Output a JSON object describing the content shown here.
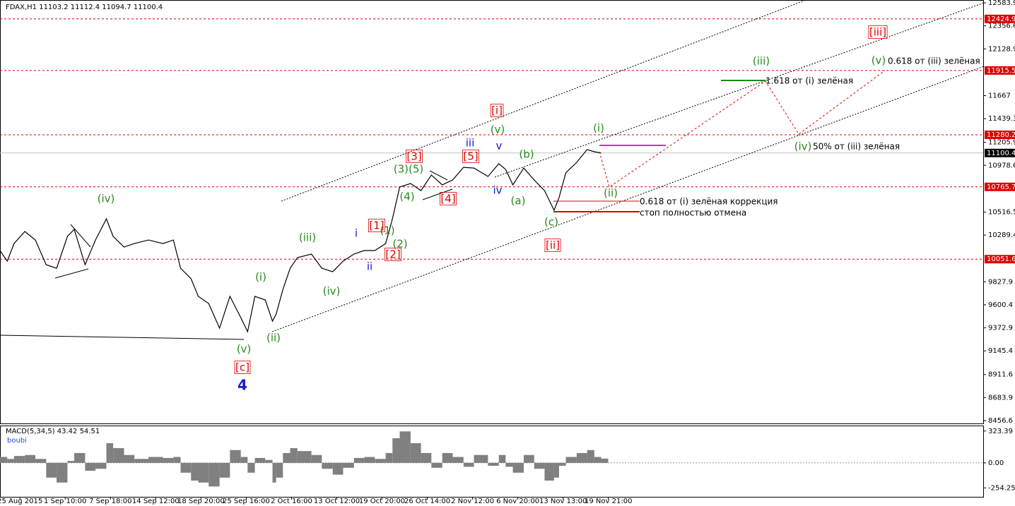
{
  "chart_data": [
    {
      "type": "line",
      "title": "FDAX,H1  11103.2 11112.4 11094.7 11100.4",
      "color": "#000000",
      "x": [
        -0.44,
        -0.28,
        -0.13,
        0.11,
        0.34,
        0.58,
        0.81,
        1.05,
        1.2,
        1.44,
        1.67,
        1.91,
        2.06,
        2.3,
        2.53,
        2.84,
        3.16,
        3.39,
        3.55,
        3.78,
        3.94,
        4.17,
        4.41,
        4.64,
        4.88,
        5.03,
        5.19,
        5.42,
        5.58,
        5.66,
        5.81,
        5.97,
        6.13,
        6.44,
        6.67,
        6.91,
        7.14,
        7.38,
        7.61,
        7.84,
        8.08,
        8.23,
        8.39,
        8.63,
        8.86,
        9.09,
        9.33,
        9.56,
        9.8,
        10.03,
        10.34,
        10.58,
        10.73,
        10.89,
        11.13,
        11.36,
        11.59,
        11.8,
        11.91,
        12.06,
        12.3,
        12.53,
        12.69,
        12.84
      ],
      "values": [
        10137,
        10032,
        10206,
        10325,
        10241,
        9997,
        9962,
        10276,
        10346,
        9997,
        10241,
        10450,
        10276,
        10171,
        10206,
        10241,
        10206,
        10241,
        9962,
        9858,
        9684,
        9614,
        9370,
        9684,
        9474,
        9335,
        9684,
        9649,
        9439,
        9509,
        9753,
        9962,
        10067,
        10102,
        9962,
        9927,
        10032,
        10102,
        10137,
        10137,
        10206,
        10450,
        10764,
        10799,
        10729,
        10883,
        10785,
        10834,
        10959,
        10952,
        10869,
        10994,
        10938,
        10785,
        10952,
        10834,
        10729,
        10534,
        10659,
        10904,
        11008,
        11134,
        11113,
        11100.4
      ],
      "xlim": [
        -0.44,
        21.28
      ],
      "xticks": [
        {
          "value": 0,
          "label": "25 Aug 2015"
        },
        {
          "value": 1,
          "label": "1 Sep 10:00"
        },
        {
          "value": 2,
          "label": "7 Sep 18:00"
        },
        {
          "value": 3,
          "label": "14 Sep 12:00"
        },
        {
          "value": 4,
          "label": "18 Sep 20:00"
        },
        {
          "value": 5,
          "label": "25 Sep 16:00"
        },
        {
          "value": 6,
          "label": "2 Oct 16:00"
        },
        {
          "value": 7,
          "label": "13 Oct 12:00"
        },
        {
          "value": 8,
          "label": "19 Oct 20:00"
        },
        {
          "value": 9,
          "label": "26 Oct 14:00"
        },
        {
          "value": 10,
          "label": "2 Nov 12:00"
        },
        {
          "value": 11,
          "label": "6 Nov 20:00"
        },
        {
          "value": 12,
          "label": "13 Nov 13:00"
        },
        {
          "value": 13,
          "label": "19 Nov 21:00"
        }
      ],
      "ylim": [
        8456.6,
        12583.9
      ],
      "yticks": [
        12583.9,
        12356.6,
        12128.9,
        11667.0,
        11439.3,
        11205.9,
        10978.6,
        10516.5,
        10289.4,
        9827.9,
        9600.4,
        9372.9,
        9145.4,
        8911.6,
        8683.9,
        8456.6
      ],
      "levels": [
        12424.9,
        11915.5,
        11280.2,
        10765.7,
        10051.6
      ],
      "level_color": "#e00000",
      "last_price": 11100.4,
      "annotations": [
        {
          "text": "(iv)",
          "color": "#2a8a1e"
        },
        {
          "text": "(v)",
          "color": "#2a8a1e"
        },
        {
          "text": "(i)",
          "color": "#2a8a1e"
        },
        {
          "text": "(ii)",
          "color": "#2a8a1e"
        },
        {
          "text": "(iii)",
          "color": "#2a8a1e"
        },
        {
          "text": "(iv)",
          "color": "#2a8a1e"
        },
        {
          "text": "(1)",
          "color": "#2a8a1e"
        },
        {
          "text": "(2)",
          "color": "#2a8a1e"
        },
        {
          "text": "(3)(5)",
          "color": "#2a8a1e"
        },
        {
          "text": "(4)",
          "color": "#2a8a1e"
        },
        {
          "text": "(v)",
          "color": "#2a8a1e"
        },
        {
          "text": "(b)",
          "color": "#2a8a1e"
        },
        {
          "text": "(a)",
          "color": "#2a8a1e"
        },
        {
          "text": "(c)",
          "color": "#2a8a1e"
        },
        {
          "text": "(i)",
          "color": "#2a8a1e"
        },
        {
          "text": "(ii)",
          "color": "#2a8a1e"
        },
        {
          "text": "(iii)",
          "color": "#2a8a1e"
        },
        {
          "text": "(iv)",
          "color": "#2a8a1e"
        },
        {
          "text": "(v)",
          "color": "#2a8a1e"
        },
        {
          "text": "[c]",
          "color": "#e00000"
        },
        {
          "text": "[1]",
          "color": "#e00000"
        },
        {
          "text": "[2]",
          "color": "#e00000"
        },
        {
          "text": "[3]",
          "color": "#e00000"
        },
        {
          "text": "[4]",
          "color": "#e00000"
        },
        {
          "text": "[5]",
          "color": "#e00000"
        },
        {
          "text": "[i]",
          "color": "#e00000"
        },
        {
          "text": "[ii]",
          "color": "#e00000"
        },
        {
          "text": "[iii]",
          "color": "#e00000"
        },
        {
          "text": "4",
          "color": "#1a1acc"
        },
        {
          "text": "i",
          "color": "#1a1acc"
        },
        {
          "text": "ii",
          "color": "#1a1acc"
        },
        {
          "text": "iii",
          "color": "#1a1acc"
        },
        {
          "text": "v",
          "color": "#1a1acc"
        },
        {
          "text": "iv",
          "color": "#1a1acc"
        },
        {
          "text": "1.618 от (i) зелёная",
          "color": "#000000"
        },
        {
          "text": "0.618 от (iii) зелёная",
          "color": "#000000"
        },
        {
          "text": "50% от (iii) зелёная",
          "color": "#000000"
        },
        {
          "text": "0.618 от (i) зелёная коррекция",
          "color": "#000000"
        },
        {
          "text": "стоп полностью отмена",
          "color": "#000000"
        }
      ]
    },
    {
      "type": "bar",
      "title": "MACD(5,34,5) 43.42 54.51",
      "subtitle": "boubi",
      "color": "#808080",
      "values": [
        60,
        40,
        70,
        80,
        40,
        -150,
        -200,
        20,
        100,
        -80,
        -60,
        200,
        150,
        80,
        40,
        60,
        50,
        60,
        -100,
        -180,
        -200,
        -240,
        -150,
        130,
        60,
        -100,
        50,
        30,
        -200,
        -150,
        100,
        150,
        120,
        80,
        -60,
        -120,
        -50,
        50,
        60,
        40,
        100,
        250,
        320,
        200,
        100,
        -50,
        100,
        60,
        -40,
        80,
        -30,
        80,
        -40,
        -100,
        80,
        -60,
        -180,
        -150,
        -30,
        60,
        100,
        130,
        60,
        43.42
      ],
      "ylim": [
        -345,
        372
      ],
      "yticks": [
        323.39,
        {
          "value": 0,
          "label": "0.00"
        },
        -254.25
      ]
    }
  ]
}
